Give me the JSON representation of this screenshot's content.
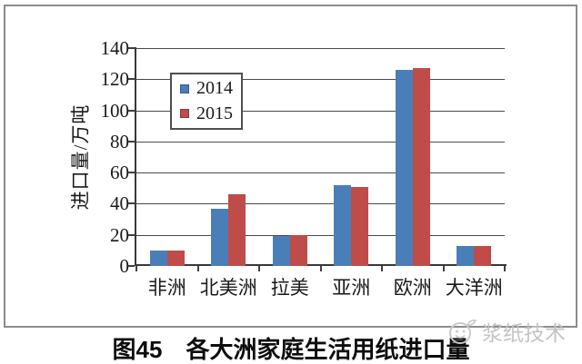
{
  "chart_data": {
    "type": "bar",
    "title": "图45 各大洲家庭生活用纸进口量",
    "categories": [
      "非洲",
      "北美洲",
      "拉美",
      "亚洲",
      "欧洲",
      "大洋洲"
    ],
    "series": [
      {
        "name": "2014",
        "color": "#4a7eb8",
        "values": [
          10,
          37,
          19,
          52,
          126,
          13
        ]
      },
      {
        "name": "2015",
        "color": "#bf4c49",
        "values": [
          10,
          46,
          20,
          51,
          127,
          13
        ]
      }
    ],
    "xlabel": "",
    "ylabel": "进口量/万吨",
    "ylim": [
      0,
      140
    ],
    "ytick_step": 20,
    "yticks": [
      "0",
      "20",
      "40",
      "60",
      "80",
      "100",
      "120",
      "140"
    ],
    "grid": true,
    "legend_position": "upper-left-inside"
  },
  "caption": {
    "prefix": "图45",
    "text": "各大洲家庭生活用纸进口量"
  },
  "watermark": {
    "text": "浆纸技术",
    "icon": "smiley-leaf-logo"
  },
  "colors": {
    "bar_2014": "#4a7eb8",
    "bar_2015": "#bf4c49",
    "axis": "#383838",
    "gridline": "#4b4b4b",
    "frame_border": "#8c8c8c",
    "watermark": "#c4c4c4"
  }
}
